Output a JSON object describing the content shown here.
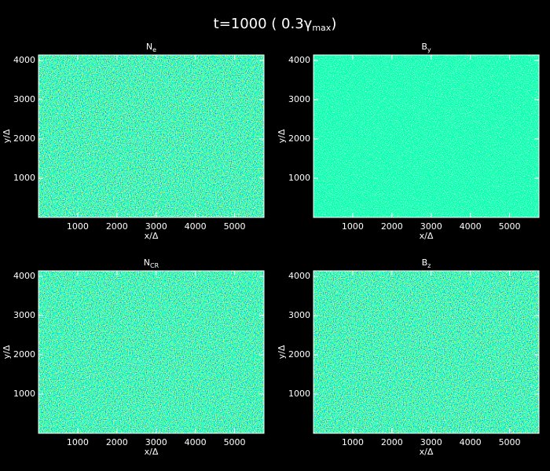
{
  "chart_data": [
    {
      "type": "heatmap",
      "title": {
        "text": "N",
        "sub": "e"
      },
      "xlabel": "x/Δ",
      "ylabel": "y/Δ",
      "xlim": [
        0,
        5750
      ],
      "ylim": [
        0,
        4140
      ],
      "xticks": [
        1000,
        2000,
        3000,
        4000,
        5000
      ],
      "yticks": [
        1000,
        2000,
        3000,
        4000
      ]
    },
    {
      "type": "heatmap",
      "title": {
        "text": "B",
        "sub": "y"
      },
      "xlabel": "x/Δ",
      "ylabel": "y/Δ",
      "xlim": [
        0,
        5750
      ],
      "ylim": [
        0,
        4140
      ],
      "xticks": [
        1000,
        2000,
        3000,
        4000,
        5000
      ],
      "yticks": [
        1000,
        2000,
        3000,
        4000
      ]
    },
    {
      "type": "heatmap",
      "title": {
        "text": "N",
        "sub": "CR"
      },
      "xlabel": "x/Δ",
      "ylabel": "y/Δ",
      "xlim": [
        0,
        5750
      ],
      "ylim": [
        0,
        4140
      ],
      "xticks": [
        1000,
        2000,
        3000,
        4000,
        5000
      ],
      "yticks": [
        1000,
        2000,
        3000,
        4000
      ]
    },
    {
      "type": "heatmap",
      "title": {
        "text": "B",
        "sub": "z"
      },
      "xlabel": "x/Δ",
      "ylabel": "y/Δ",
      "xlim": [
        0,
        5750
      ],
      "ylim": [
        0,
        4140
      ],
      "xticks": [
        1000,
        2000,
        3000,
        4000,
        5000
      ],
      "yticks": [
        1000,
        2000,
        3000,
        4000
      ]
    }
  ],
  "title": {
    "text": "t=1000 ( 0.3γ",
    "sub": "max",
    "end": ")"
  }
}
